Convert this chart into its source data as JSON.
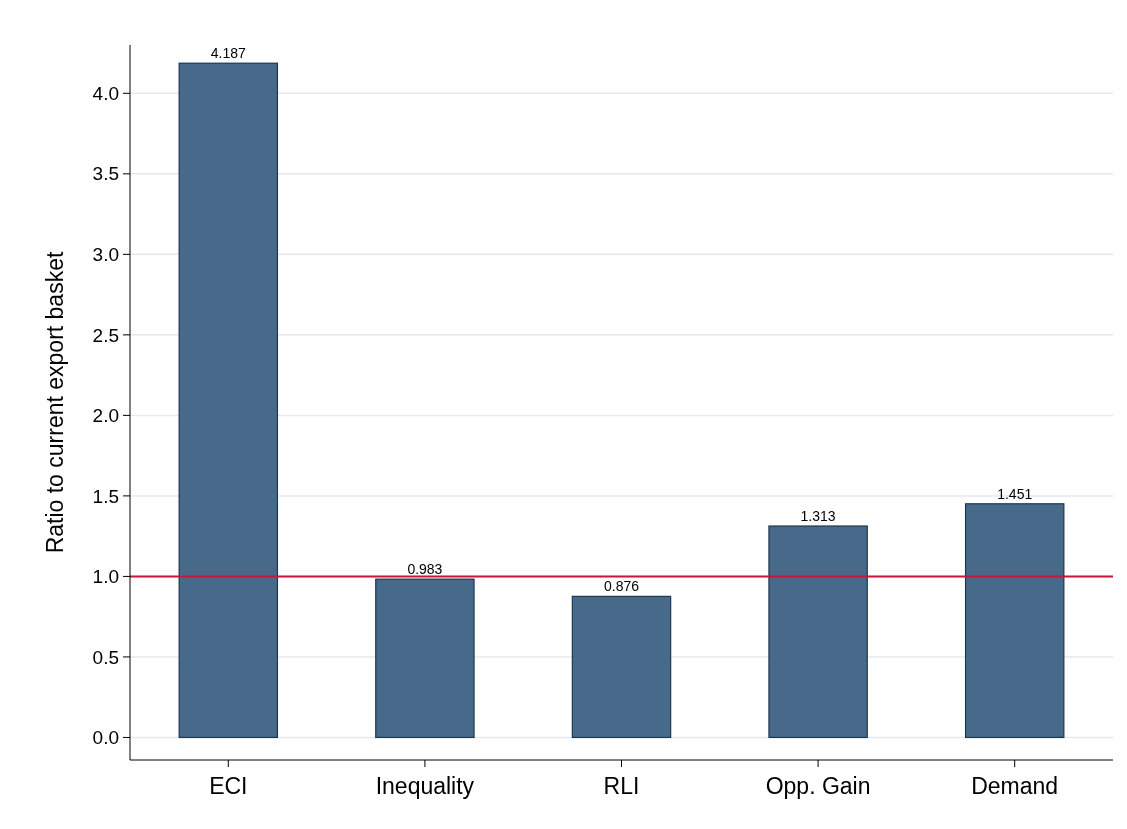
{
  "chart_data": {
    "type": "bar",
    "ylabel": "Ratio to current export basket",
    "categories": [
      "ECI",
      "Inequality",
      "RLI",
      "Opp. Gain",
      "Demand"
    ],
    "values": [
      4.187,
      0.983,
      0.876,
      1.313,
      1.451
    ],
    "color": "#476a8a",
    "data_labels": true,
    "ylim": [
      -0.14,
      4.3
    ],
    "yticks": [
      {
        "value": 0,
        "label": "0.0"
      },
      {
        "value": 0.5,
        "label": "0.5"
      },
      {
        "value": 1,
        "label": "1.0"
      },
      {
        "value": 1.5,
        "label": "1.5"
      },
      {
        "value": 2,
        "label": "2.0"
      },
      {
        "value": 2.5,
        "label": "2.5"
      },
      {
        "value": 3,
        "label": "3.0"
      },
      {
        "value": 3.5,
        "label": "3.5"
      },
      {
        "value": 4,
        "label": "4.0"
      }
    ],
    "grid": "y",
    "ref_lines": [
      {
        "axis": "y",
        "value": 1,
        "color": "#c8173a"
      }
    ]
  }
}
